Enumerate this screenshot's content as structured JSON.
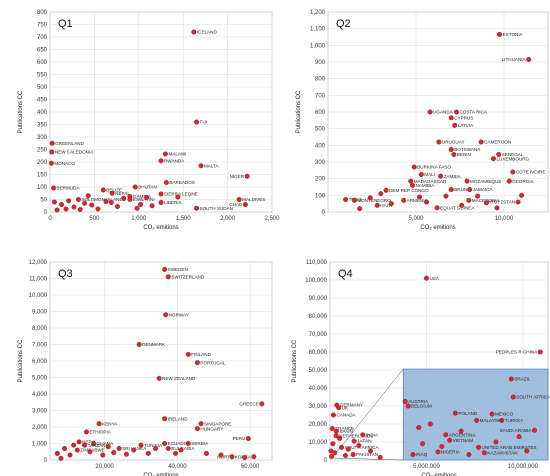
{
  "colors": {
    "marker": "#d7262b",
    "marker_edge": "#8a1a1d",
    "grid": "#d9d9d9",
    "frame": "#b0b0b0",
    "inset_fill": "#8fb4d8",
    "inset_edge": "#5a86b3"
  },
  "chart_data": [
    {
      "type": "scatter",
      "title": "Q1",
      "xlabel": "CO₂ emitions",
      "ylabel": "Publications CC",
      "xlim": [
        0,
        2500
      ],
      "ylim": [
        0,
        800
      ],
      "xticks": [
        0,
        500,
        1000,
        1500,
        2000,
        2500
      ],
      "xtick_labels": [
        "0",
        "500",
        "1,000",
        "1,500",
        "2,000",
        "2,500"
      ],
      "yticks": [
        0,
        50,
        100,
        150,
        200,
        250,
        300,
        350,
        400,
        450,
        500,
        550,
        600,
        650,
        700,
        750,
        800
      ],
      "ytick_labels": [
        "0",
        "50",
        "100",
        "150",
        "200",
        "250",
        "300",
        "350",
        "400",
        "450",
        "500",
        "550",
        "600",
        "650",
        "700",
        "750",
        "800"
      ],
      "grid": true,
      "points": [
        {
          "x": 1620,
          "y": 720,
          "label": "ICELAND"
        },
        {
          "x": 1650,
          "y": 360,
          "label": "FIJI"
        },
        {
          "x": 25,
          "y": 275,
          "label": "GREENLAND"
        },
        {
          "x": 20,
          "y": 240,
          "label": "NEW CALEDONIA"
        },
        {
          "x": 1300,
          "y": 232,
          "label": "MALAWI"
        },
        {
          "x": 1250,
          "y": 205,
          "label": "RWANDA"
        },
        {
          "x": 15,
          "y": 195,
          "label": "MONACO"
        },
        {
          "x": 1700,
          "y": 185,
          "label": "MALTA"
        },
        {
          "x": 2220,
          "y": 143,
          "label": "NIGER"
        },
        {
          "x": 1310,
          "y": 118,
          "label": "BARBADOS"
        },
        {
          "x": 40,
          "y": 96,
          "label": "BERMUDA"
        },
        {
          "x": 960,
          "y": 100,
          "label": "BHUTAN"
        },
        {
          "x": 600,
          "y": 88,
          "label": "BELIZE"
        },
        {
          "x": 700,
          "y": 75,
          "label": "NEPAL"
        },
        {
          "x": 1250,
          "y": 72,
          "label": "SIERRA LEONE"
        },
        {
          "x": 900,
          "y": 62,
          "label": "GAMBIA"
        },
        {
          "x": 900,
          "y": 50,
          "label": "ESWATINI"
        },
        {
          "x": 320,
          "y": 50,
          "label": "SOLOMON ISLANDS"
        },
        {
          "x": 1250,
          "y": 38,
          "label": "LIBERIA"
        },
        {
          "x": 2130,
          "y": 50,
          "label": "MALDIVES"
        },
        {
          "x": 2200,
          "y": 30,
          "label": "CHAD"
        },
        {
          "x": 1650,
          "y": 15,
          "label": "SOUTH SUDAN"
        },
        {
          "x": 50,
          "y": 40,
          "label": ""
        },
        {
          "x": 130,
          "y": 30,
          "label": ""
        },
        {
          "x": 210,
          "y": 45,
          "label": ""
        },
        {
          "x": 270,
          "y": 20,
          "label": ""
        },
        {
          "x": 390,
          "y": 35,
          "label": ""
        },
        {
          "x": 470,
          "y": 28,
          "label": ""
        },
        {
          "x": 540,
          "y": 12,
          "label": ""
        },
        {
          "x": 630,
          "y": 42,
          "label": ""
        },
        {
          "x": 760,
          "y": 22,
          "label": ""
        },
        {
          "x": 830,
          "y": 55,
          "label": ""
        },
        {
          "x": 1020,
          "y": 30,
          "label": ""
        },
        {
          "x": 1090,
          "y": 58,
          "label": ""
        },
        {
          "x": 1150,
          "y": 25,
          "label": ""
        },
        {
          "x": 1440,
          "y": 60,
          "label": ""
        },
        {
          "x": 80,
          "y": 8,
          "label": ""
        },
        {
          "x": 180,
          "y": 12,
          "label": ""
        },
        {
          "x": 340,
          "y": 10,
          "label": ""
        },
        {
          "x": 430,
          "y": 65,
          "label": ""
        },
        {
          "x": 690,
          "y": 38,
          "label": ""
        },
        {
          "x": 980,
          "y": 15,
          "label": ""
        }
      ]
    },
    {
      "type": "scatter",
      "title": "Q2",
      "xlabel": "CO₂ emitions",
      "ylabel": "Publications CC",
      "xlim": [
        0,
        12500
      ],
      "ylim": [
        0,
        1200
      ],
      "xticks": [
        5000,
        10000
      ],
      "xtick_labels": [
        "5,000",
        "10,000"
      ],
      "yticks": [
        0,
        100,
        200,
        300,
        400,
        500,
        600,
        700,
        800,
        900,
        1000,
        1100,
        1200
      ],
      "ytick_labels": [
        "0",
        "100",
        "200",
        "300",
        "400",
        "500",
        "600",
        "700",
        "800",
        "900",
        "1,000",
        "1,100",
        "1,200"
      ],
      "grid": true,
      "points": [
        {
          "x": 9750,
          "y": 1065,
          "label": "ESTONIA"
        },
        {
          "x": 11400,
          "y": 915,
          "label": "LITHUANIA"
        },
        {
          "x": 5800,
          "y": 600,
          "label": "UGANDA"
        },
        {
          "x": 7300,
          "y": 600,
          "label": "COSTA RICA"
        },
        {
          "x": 7000,
          "y": 565,
          "label": "CYPRUS"
        },
        {
          "x": 7200,
          "y": 520,
          "label": "LATVIA"
        },
        {
          "x": 6300,
          "y": 420,
          "label": "URUGUAY"
        },
        {
          "x": 8700,
          "y": 420,
          "label": "CAMEROON"
        },
        {
          "x": 7000,
          "y": 375,
          "label": "BOTSWANA"
        },
        {
          "x": 7150,
          "y": 345,
          "label": "BENIN"
        },
        {
          "x": 9700,
          "y": 345,
          "label": "SENEGAL"
        },
        {
          "x": 9400,
          "y": 320,
          "label": "LUXEMBOURG"
        },
        {
          "x": 4900,
          "y": 270,
          "label": "BURKINA FASO"
        },
        {
          "x": 10500,
          "y": 240,
          "label": "COTE IVOIRE"
        },
        {
          "x": 5300,
          "y": 225,
          "label": "MALI"
        },
        {
          "x": 6400,
          "y": 215,
          "label": "ZAMBIA"
        },
        {
          "x": 4700,
          "y": 185,
          "label": "MADAGASCAR"
        },
        {
          "x": 7900,
          "y": 185,
          "label": "MOZAMBIQUE"
        },
        {
          "x": 10300,
          "y": 185,
          "label": "GEORGIA"
        },
        {
          "x": 4800,
          "y": 160,
          "label": "NAMIBIA"
        },
        {
          "x": 7000,
          "y": 135,
          "label": "BRUNEI"
        },
        {
          "x": 8050,
          "y": 135,
          "label": "JAMAICA"
        },
        {
          "x": 3300,
          "y": 130,
          "label": "DEM REP CONGO"
        },
        {
          "x": 1000,
          "y": 75,
          "label": "TOGO"
        },
        {
          "x": 1500,
          "y": 70,
          "label": "MONTENEGRO"
        },
        {
          "x": 4300,
          "y": 70,
          "label": "ARMENIA"
        },
        {
          "x": 8000,
          "y": 70,
          "label": "MACEDONIA"
        },
        {
          "x": 10800,
          "y": 60,
          "label": "KYRGYZSTAN"
        },
        {
          "x": 6200,
          "y": 25,
          "label": "EQUAT GUINEA"
        },
        {
          "x": 2800,
          "y": 40,
          "label": "HAITI"
        },
        {
          "x": 1800,
          "y": 20,
          "label": ""
        },
        {
          "x": 2400,
          "y": 85,
          "label": ""
        },
        {
          "x": 3600,
          "y": 50,
          "label": ""
        },
        {
          "x": 5200,
          "y": 90,
          "label": ""
        },
        {
          "x": 5600,
          "y": 60,
          "label": ""
        },
        {
          "x": 6700,
          "y": 95,
          "label": ""
        },
        {
          "x": 7600,
          "y": 40,
          "label": ""
        },
        {
          "x": 8500,
          "y": 95,
          "label": ""
        },
        {
          "x": 9000,
          "y": 55,
          "label": ""
        },
        {
          "x": 9600,
          "y": 25,
          "label": ""
        },
        {
          "x": 11000,
          "y": 100,
          "label": ""
        },
        {
          "x": 3000,
          "y": 110,
          "label": ""
        }
      ]
    },
    {
      "type": "scatter",
      "title": "Q3",
      "xlabel": "CO₂ emitions",
      "ylabel": "Publications CC",
      "xlim": [
        5000,
        66000
      ],
      "ylim": [
        0,
        12000
      ],
      "xticks": [
        20000,
        40000,
        60000
      ],
      "xtick_labels": [
        "20,000",
        "40,000",
        "60,000"
      ],
      "yticks": [
        0,
        1000,
        2000,
        3000,
        4000,
        5000,
        6000,
        7000,
        8000,
        9000,
        10000,
        11000,
        12000
      ],
      "ytick_labels": [
        "0",
        "1,000",
        "2,000",
        "3,000",
        "4,000",
        "5,000",
        "6,000",
        "7,000",
        "8,000",
        "9,000",
        "10,000",
        "11,000",
        "12,000"
      ],
      "grid": true,
      "points": [
        {
          "x": 36500,
          "y": 11550,
          "label": "SWEDEN"
        },
        {
          "x": 37500,
          "y": 11100,
          "label": "SWITZERLAND"
        },
        {
          "x": 36800,
          "y": 8800,
          "label": "NORWAY"
        },
        {
          "x": 29500,
          "y": 7000,
          "label": "DENMARK"
        },
        {
          "x": 43000,
          "y": 6400,
          "label": "FINLAND"
        },
        {
          "x": 45500,
          "y": 5900,
          "label": "PORTUGAL"
        },
        {
          "x": 35000,
          "y": 4950,
          "label": "NEW ZEALAND"
        },
        {
          "x": 63200,
          "y": 3400,
          "label": "GREECE"
        },
        {
          "x": 36500,
          "y": 2500,
          "label": "IRELAND"
        },
        {
          "x": 46500,
          "y": 2200,
          "label": "SINGAPORE"
        },
        {
          "x": 45500,
          "y": 1900,
          "label": "HUNGARY"
        },
        {
          "x": 18500,
          "y": 2200,
          "label": "KENYA"
        },
        {
          "x": 15000,
          "y": 1700,
          "label": "ETHIOPIA"
        },
        {
          "x": 59500,
          "y": 1300,
          "label": "PERU"
        },
        {
          "x": 13000,
          "y": 1100,
          "label": "NEPAL"
        },
        {
          "x": 17000,
          "y": 1000,
          "label": "GHANA"
        },
        {
          "x": 36500,
          "y": 1000,
          "label": "ECUADOR"
        },
        {
          "x": 43000,
          "y": 1000,
          "label": "SERBIA"
        },
        {
          "x": 14500,
          "y": 900,
          "label": "TANZANIA"
        },
        {
          "x": 30000,
          "y": 900,
          "label": "TUNISIA"
        },
        {
          "x": 24000,
          "y": 700,
          "label": "SRI LANKA"
        },
        {
          "x": 37500,
          "y": 700,
          "label": "BULGARIA"
        },
        {
          "x": 12500,
          "y": 600,
          "label": "ZIMBABWE"
        },
        {
          "x": 61000,
          "y": 200,
          "label": "NORTH KOREA"
        },
        {
          "x": 58500,
          "y": 150,
          "label": ""
        },
        {
          "x": 7000,
          "y": 400,
          "label": ""
        },
        {
          "x": 9000,
          "y": 700,
          "label": ""
        },
        {
          "x": 10500,
          "y": 300,
          "label": ""
        },
        {
          "x": 11500,
          "y": 900,
          "label": ""
        },
        {
          "x": 16000,
          "y": 500,
          "label": ""
        },
        {
          "x": 19500,
          "y": 300,
          "label": ""
        },
        {
          "x": 21000,
          "y": 800,
          "label": ""
        },
        {
          "x": 22500,
          "y": 450,
          "label": ""
        },
        {
          "x": 26000,
          "y": 350,
          "label": ""
        },
        {
          "x": 28000,
          "y": 600,
          "label": ""
        },
        {
          "x": 32000,
          "y": 400,
          "label": ""
        },
        {
          "x": 34000,
          "y": 700,
          "label": ""
        },
        {
          "x": 39500,
          "y": 400,
          "label": ""
        },
        {
          "x": 41000,
          "y": 600,
          "label": ""
        },
        {
          "x": 48000,
          "y": 400,
          "label": ""
        },
        {
          "x": 52000,
          "y": 300,
          "label": ""
        },
        {
          "x": 55000,
          "y": 200,
          "label": ""
        },
        {
          "x": 8000,
          "y": 100,
          "label": ""
        }
      ]
    },
    {
      "type": "scatter",
      "title": "Q4",
      "xlabel": "CO₂ emitions",
      "ylabel": "Publications CC",
      "xlim": [
        0,
        11300000
      ],
      "ylim": [
        0,
        110000
      ],
      "xticks": [
        5000000,
        10000000
      ],
      "xtick_labels": [
        "5,000,000",
        "10,000,000"
      ],
      "yticks": [
        0,
        10000,
        20000,
        30000,
        40000,
        50000,
        60000,
        70000,
        80000,
        90000,
        100000,
        110000
      ],
      "ytick_labels": [
        "0",
        "10,000",
        "20,000",
        "30,000",
        "40,000",
        "50,000",
        "60,000",
        "70,000",
        "80,000",
        "90,000",
        "100,000",
        "110,000"
      ],
      "grid": true,
      "inset_box": {
        "x": [
          3800000,
          11300000
        ],
        "y": [
          0,
          50500
        ]
      },
      "points": [
        {
          "x": 5000000,
          "y": 101000,
          "label": "USA"
        },
        {
          "x": 10900000,
          "y": 60000,
          "label": "PEOPLES R CHINA"
        },
        {
          "x": 9400000,
          "y": 45000,
          "label": "BRAZIL"
        },
        {
          "x": 9500000,
          "y": 35000,
          "label": "SOUTH AFRICA"
        },
        {
          "x": 350000,
          "y": 30500,
          "label": "GERMANY"
        },
        {
          "x": 450000,
          "y": 29000,
          "label": "UK"
        },
        {
          "x": 180000,
          "y": 25000,
          "label": "CANADA"
        },
        {
          "x": 3900000,
          "y": 32500,
          "label": "AUSTRIA"
        },
        {
          "x": 4050000,
          "y": 30000,
          "label": "BELGIUM"
        },
        {
          "x": 6500000,
          "y": 26000,
          "label": "POLAND"
        },
        {
          "x": 8400000,
          "y": 25500,
          "label": "MEXICO"
        },
        {
          "x": 8900000,
          "y": 22000,
          "label": "TURKEY"
        },
        {
          "x": 7600000,
          "y": 22000,
          "label": "MALAYSIA"
        },
        {
          "x": 10600000,
          "y": 16500,
          "label": "SAUDI ARABIA"
        },
        {
          "x": 120000,
          "y": 17500,
          "label": "FRANCE"
        },
        {
          "x": 330000,
          "y": 16000,
          "label": "SPAIN"
        },
        {
          "x": 320000,
          "y": 13500,
          "label": "NETHERLANDS"
        },
        {
          "x": 1700000,
          "y": 14000,
          "label": "INDIA"
        },
        {
          "x": 1250000,
          "y": 10500,
          "label": "JAPAN"
        },
        {
          "x": 600000,
          "y": 7000,
          "label": "SOUTH AFRICA"
        },
        {
          "x": 6000000,
          "y": 14000,
          "label": "ARGENTINA"
        },
        {
          "x": 6200000,
          "y": 11000,
          "label": "VIETNAM"
        },
        {
          "x": 7700000,
          "y": 7000,
          "label": "UNITED ARAB EMIRATES"
        },
        {
          "x": 8000000,
          "y": 4000,
          "label": "KAZAKHSTAN"
        },
        {
          "x": 5600000,
          "y": 4500,
          "label": "NIGERIA"
        },
        {
          "x": 4300000,
          "y": 3000,
          "label": "IRAQ"
        },
        {
          "x": 1200000,
          "y": 3000,
          "label": "PAKISTAN"
        },
        {
          "x": 50000,
          "y": 5000,
          "label": ""
        },
        {
          "x": 80000,
          "y": 2000,
          "label": ""
        },
        {
          "x": 150000,
          "y": 9000,
          "label": ""
        },
        {
          "x": 250000,
          "y": 4000,
          "label": ""
        },
        {
          "x": 500000,
          "y": 12000,
          "label": ""
        },
        {
          "x": 800000,
          "y": 2500,
          "label": ""
        },
        {
          "x": 950000,
          "y": 6000,
          "label": ""
        },
        {
          "x": 1500000,
          "y": 8000,
          "label": ""
        },
        {
          "x": 2100000,
          "y": 5000,
          "label": ""
        },
        {
          "x": 2600000,
          "y": 1500,
          "label": ""
        },
        {
          "x": 4600000,
          "y": 18000,
          "label": ""
        },
        {
          "x": 4800000,
          "y": 9000,
          "label": ""
        },
        {
          "x": 5200000,
          "y": 20000,
          "label": ""
        },
        {
          "x": 5800000,
          "y": 7500,
          "label": ""
        },
        {
          "x": 6800000,
          "y": 16000,
          "label": ""
        },
        {
          "x": 7200000,
          "y": 3000,
          "label": ""
        },
        {
          "x": 8600000,
          "y": 10000,
          "label": ""
        },
        {
          "x": 9800000,
          "y": 13000,
          "label": ""
        },
        {
          "x": 10200000,
          "y": 5000,
          "label": ""
        }
      ]
    }
  ]
}
